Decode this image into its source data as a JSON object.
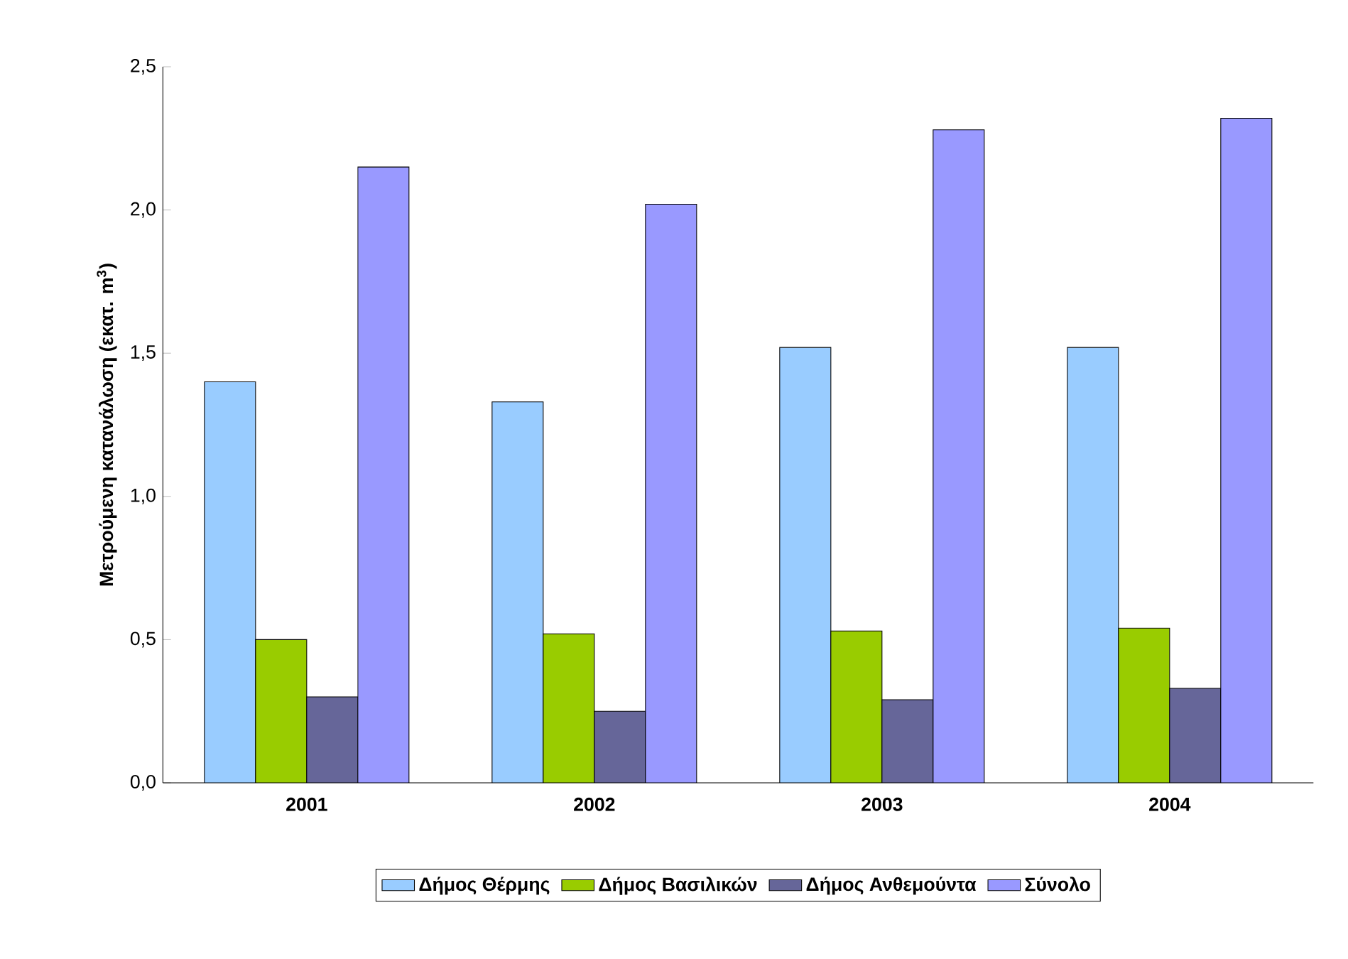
{
  "chart_data": {
    "type": "bar",
    "ylabel": "Μετρούμενη κατανάλωση (εκατ. m$^{3}$)",
    "categories": [
      "2001",
      "2002",
      "2003",
      "2004"
    ],
    "series": [
      {
        "name": "Δήμος Θέρμης",
        "color": "#99ccff",
        "values": [
          1.4,
          1.33,
          1.52,
          1.52
        ]
      },
      {
        "name": "Δήμος Βασιλικών",
        "color": "#99cc00",
        "values": [
          0.5,
          0.52,
          0.53,
          0.54
        ]
      },
      {
        "name": "Δήμος Ανθεμούντα",
        "color": "#666699",
        "values": [
          0.3,
          0.25,
          0.29,
          0.33
        ]
      },
      {
        "name": "Σύνολο",
        "color": "#9999ff",
        "values": [
          2.15,
          2.02,
          2.28,
          2.32
        ]
      }
    ],
    "ylim": [
      0,
      2.5
    ],
    "yticks": [
      {
        "value": 0,
        "label": "0,0"
      },
      {
        "value": 0.5,
        "label": "0,5"
      },
      {
        "value": 1,
        "label": "1,0"
      },
      {
        "value": 1.5,
        "label": "1,5"
      },
      {
        "value": 2,
        "label": "2,0"
      },
      {
        "value": 2.5,
        "label": "2,5"
      }
    ],
    "legend": "bottom",
    "grid": false
  }
}
